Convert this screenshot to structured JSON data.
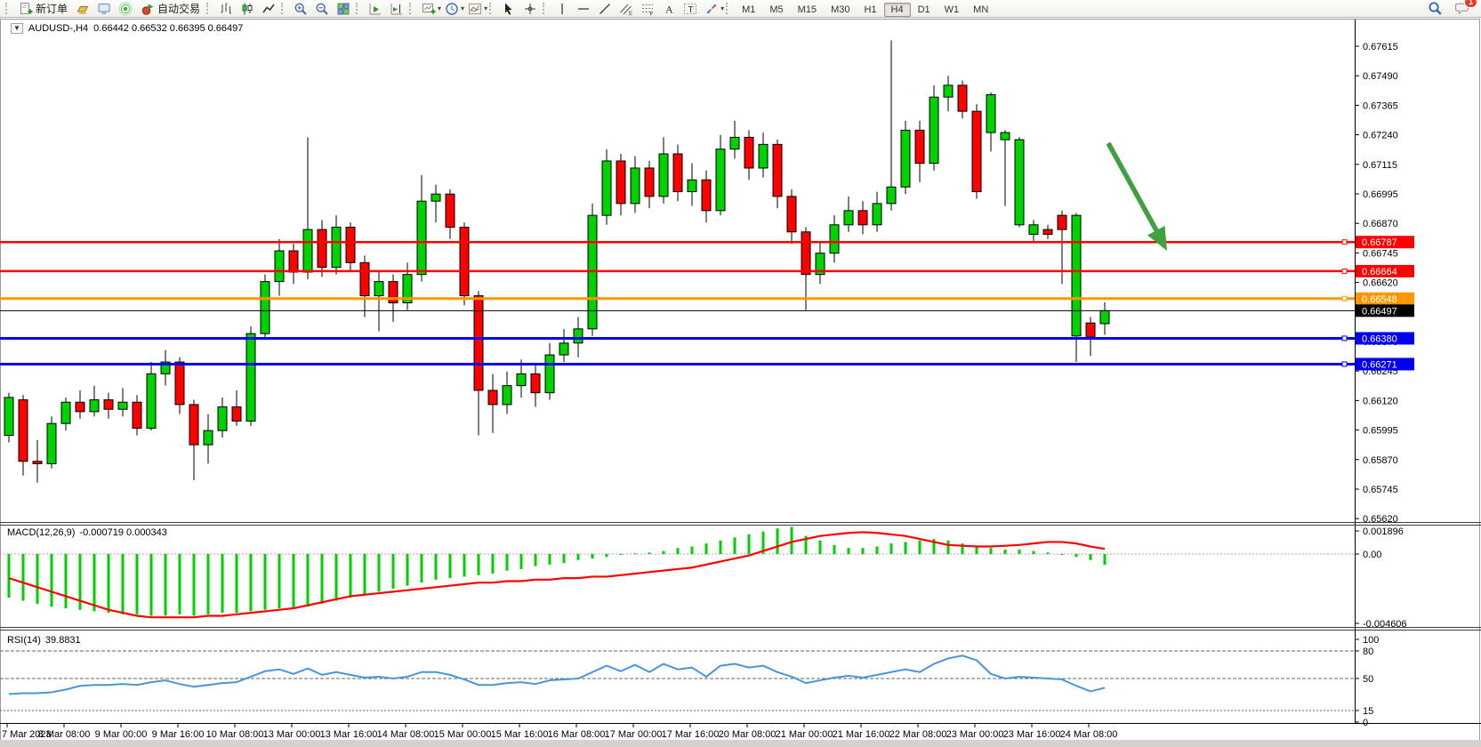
{
  "toolbar": {
    "new_order_label": "新订单",
    "autotrading_label": "自动交易",
    "timeframes": [
      "M1",
      "M5",
      "M15",
      "M30",
      "H1",
      "H4",
      "D1",
      "W1",
      "MN"
    ],
    "active_timeframe": "H4",
    "notification_badge": "1",
    "icon_names": [
      "new-order-icon",
      "market-watch-icon",
      "navigator-icon",
      "terminal-icon",
      "autotrading-icon",
      "bar-chart-icon",
      "candlestick-chart-icon",
      "line-chart-icon",
      "zoom-in-icon",
      "zoom-out-icon",
      "tile-windows-icon",
      "chart-shift-icon",
      "auto-scroll-icon",
      "new-chart-icon",
      "periods-icon",
      "templates-icon",
      "cursor-icon",
      "crosshair-icon",
      "vertical-line-icon",
      "horizontal-line-icon",
      "trendline-icon",
      "equidistant-channel-icon",
      "fibonacci-icon",
      "text-icon",
      "text-label-icon",
      "arrows-icon",
      "search-icon",
      "chat-icon"
    ]
  },
  "chart": {
    "symbol_title": "AUDUSD-,H4",
    "ohlc_text": "0.66442 0.66532 0.66395 0.66497"
  },
  "price_axis": {
    "labels": [
      "0.67615",
      "0.67490",
      "0.67365",
      "0.67240",
      "0.67115",
      "0.66995",
      "0.66870",
      "0.66745",
      "0.66620",
      "0.66495",
      "0.66370",
      "0.66245",
      "0.66120",
      "0.65995",
      "0.65870",
      "0.65745",
      "0.65620"
    ]
  },
  "hlines": [
    {
      "label": "0.66787",
      "value": 0.66787,
      "color": "#ff0000",
      "thickness": 2.5
    },
    {
      "label": "0.66664",
      "value": 0.66664,
      "color": "#ff0000",
      "thickness": 2.5
    },
    {
      "label": "0.66548",
      "value": 0.66548,
      "color": "#ff9800",
      "thickness": 3
    },
    {
      "label": "0.66497",
      "value": 0.66497,
      "color": "#000000",
      "thickness": 1
    },
    {
      "label": "0.66380",
      "value": 0.6638,
      "color": "#0000ee",
      "thickness": 3
    },
    {
      "label": "0.66271",
      "value": 0.66271,
      "color": "#0000ee",
      "thickness": 3
    }
  ],
  "macd": {
    "label": "MACD(12,26,9)",
    "values_text": "-0.000719 0.000343",
    "axis_labels": [
      "0.001896",
      "0.00",
      "-0.004606"
    ],
    "histogram_color": "#00cf00",
    "signal_color": "#ff0000"
  },
  "rsi": {
    "label": "RSI(14)",
    "value_text": "39.8831",
    "axis_labels": [
      "100",
      "80",
      "50",
      "15",
      "0"
    ],
    "line_color": "#4a96d9"
  },
  "time_axis": {
    "labels": [
      "7 Mar 2023",
      "8 Mar 08:00",
      "9 Mar 00:00",
      "9 Mar 16:00",
      "10 Mar 08:00",
      "13 Mar 00:00",
      "13 Mar 16:00",
      "14 Mar 08:00",
      "15 Mar 00:00",
      "15 Mar 16:00",
      "16 Mar 08:00",
      "17 Mar 00:00",
      "17 Mar 16:00",
      "20 Mar 08:00",
      "21 Mar 00:00",
      "21 Mar 16:00",
      "22 Mar 08:00",
      "23 Mar 00:00",
      "23 Mar 16:00",
      "24 Mar 08:00"
    ]
  },
  "annotation_arrow": {
    "color": "#3ea03e"
  },
  "chart_data": {
    "type": "candlestick",
    "symbol": "AUDUSD",
    "timeframe": "H4",
    "current_bar": {
      "open": 0.66442,
      "high": 0.66532,
      "low": 0.66395,
      "close": 0.66497
    },
    "price_range": [
      0.6562,
      0.67615
    ],
    "bull_color": "#00d200",
    "bear_color": "#ff0000",
    "candles": [
      [
        0.6597,
        0.6615,
        0.6594,
        0.6613
      ],
      [
        0.6612,
        0.6614,
        0.658,
        0.6586
      ],
      [
        0.6586,
        0.6595,
        0.6577,
        0.6585
      ],
      [
        0.6585,
        0.6605,
        0.6583,
        0.6602
      ],
      [
        0.6602,
        0.6613,
        0.6599,
        0.6611
      ],
      [
        0.6611,
        0.6616,
        0.6604,
        0.6607
      ],
      [
        0.6607,
        0.6618,
        0.6605,
        0.6612
      ],
      [
        0.6612,
        0.6615,
        0.6604,
        0.6608
      ],
      [
        0.6608,
        0.6617,
        0.6605,
        0.6611
      ],
      [
        0.6611,
        0.6614,
        0.6597,
        0.66
      ],
      [
        0.66,
        0.6628,
        0.6599,
        0.6623
      ],
      [
        0.6623,
        0.6633,
        0.6618,
        0.6628
      ],
      [
        0.6628,
        0.663,
        0.6606,
        0.661
      ],
      [
        0.661,
        0.6612,
        0.6578,
        0.6593
      ],
      [
        0.6593,
        0.6606,
        0.6585,
        0.6599
      ],
      [
        0.6599,
        0.6613,
        0.6596,
        0.6609
      ],
      [
        0.6609,
        0.6616,
        0.6601,
        0.6603
      ],
      [
        0.6603,
        0.6643,
        0.6601,
        0.664
      ],
      [
        0.664,
        0.6665,
        0.6638,
        0.6662
      ],
      [
        0.6662,
        0.668,
        0.6656,
        0.6675
      ],
      [
        0.6675,
        0.6678,
        0.6661,
        0.6666
      ],
      [
        0.6666,
        0.6723,
        0.6663,
        0.6684
      ],
      [
        0.6684,
        0.6688,
        0.6664,
        0.6668
      ],
      [
        0.6668,
        0.669,
        0.6665,
        0.6685
      ],
      [
        0.6685,
        0.6687,
        0.6666,
        0.667
      ],
      [
        0.667,
        0.6673,
        0.6647,
        0.6656
      ],
      [
        0.6656,
        0.6666,
        0.6641,
        0.6662
      ],
      [
        0.6662,
        0.6665,
        0.6645,
        0.6653
      ],
      [
        0.6653,
        0.667,
        0.665,
        0.6665
      ],
      [
        0.6665,
        0.6707,
        0.6662,
        0.6696
      ],
      [
        0.6696,
        0.6703,
        0.6687,
        0.6699
      ],
      [
        0.6699,
        0.6701,
        0.668,
        0.6685
      ],
      [
        0.6685,
        0.6687,
        0.6652,
        0.6656
      ],
      [
        0.6656,
        0.6658,
        0.6597,
        0.6616
      ],
      [
        0.6616,
        0.6623,
        0.6598,
        0.661
      ],
      [
        0.661,
        0.6624,
        0.6606,
        0.6618
      ],
      [
        0.6618,
        0.6629,
        0.6613,
        0.6623
      ],
      [
        0.6623,
        0.6627,
        0.6609,
        0.6615
      ],
      [
        0.6615,
        0.6636,
        0.6612,
        0.6631
      ],
      [
        0.6631,
        0.6642,
        0.6628,
        0.6636
      ],
      [
        0.6636,
        0.6647,
        0.663,
        0.6642
      ],
      [
        0.6642,
        0.6695,
        0.6639,
        0.669
      ],
      [
        0.669,
        0.6718,
        0.6686,
        0.6713
      ],
      [
        0.6713,
        0.6716,
        0.669,
        0.6695
      ],
      [
        0.6695,
        0.6715,
        0.6691,
        0.671
      ],
      [
        0.671,
        0.6713,
        0.6693,
        0.6698
      ],
      [
        0.6698,
        0.6723,
        0.6695,
        0.6716
      ],
      [
        0.6716,
        0.672,
        0.6696,
        0.67
      ],
      [
        0.67,
        0.6712,
        0.6694,
        0.6705
      ],
      [
        0.6705,
        0.6709,
        0.6687,
        0.6692
      ],
      [
        0.6692,
        0.6724,
        0.669,
        0.6718
      ],
      [
        0.6718,
        0.673,
        0.6714,
        0.6723
      ],
      [
        0.6723,
        0.6726,
        0.6705,
        0.671
      ],
      [
        0.671,
        0.6725,
        0.6706,
        0.672
      ],
      [
        0.672,
        0.6722,
        0.6693,
        0.6698
      ],
      [
        0.6698,
        0.6701,
        0.6678,
        0.6683
      ],
      [
        0.6683,
        0.6685,
        0.665,
        0.6665
      ],
      [
        0.6665,
        0.6679,
        0.6661,
        0.6674
      ],
      [
        0.6674,
        0.669,
        0.667,
        0.6686
      ],
      [
        0.6686,
        0.6698,
        0.6683,
        0.6692
      ],
      [
        0.6692,
        0.6696,
        0.6682,
        0.6686
      ],
      [
        0.6686,
        0.67,
        0.6683,
        0.6695
      ],
      [
        0.6695,
        0.6764,
        0.6692,
        0.6702
      ],
      [
        0.6702,
        0.673,
        0.6699,
        0.6726
      ],
      [
        0.6726,
        0.673,
        0.6704,
        0.6712
      ],
      [
        0.6712,
        0.6745,
        0.6709,
        0.674
      ],
      [
        0.674,
        0.6749,
        0.6734,
        0.6745
      ],
      [
        0.6745,
        0.6747,
        0.6731,
        0.6734
      ],
      [
        0.6734,
        0.6737,
        0.6697,
        0.67
      ],
      [
        0.6725,
        0.6742,
        0.6717,
        0.6741
      ],
      [
        0.6722,
        0.6726,
        0.6694,
        0.6725
      ],
      [
        0.6686,
        0.6723,
        0.6685,
        0.6722
      ],
      [
        0.6682,
        0.6688,
        0.6679,
        0.6686
      ],
      [
        0.6684,
        0.6686,
        0.668,
        0.6682
      ],
      [
        0.669,
        0.6692,
        0.6661,
        0.6684
      ],
      [
        0.6639,
        0.6691,
        0.6628,
        0.669
      ],
      [
        0.66445,
        0.6647,
        0.66305,
        0.66385
      ],
      [
        0.66442,
        0.66532,
        0.66395,
        0.66497
      ]
    ],
    "macd_histogram": [
      -0.0029,
      -0.0031,
      -0.0033,
      -0.0035,
      -0.0036,
      -0.0037,
      -0.0038,
      -0.0039,
      -0.004,
      -0.004,
      -0.0041,
      -0.0041,
      -0.004,
      -0.0041,
      -0.004,
      -0.0039,
      -0.0039,
      -0.0038,
      -0.0037,
      -0.0036,
      -0.0036,
      -0.0035,
      -0.0033,
      -0.0031,
      -0.0029,
      -0.0027,
      -0.0025,
      -0.0023,
      -0.0021,
      -0.0019,
      -0.0017,
      -0.0016,
      -0.0015,
      -0.0014,
      -0.0013,
      -0.0011,
      -0.001,
      -0.0008,
      -0.0007,
      -0.0006,
      -0.0004,
      -0.0003,
      -0.0002,
      -5e-05,
      5e-05,
      0.0001,
      0.0002,
      0.0004,
      0.0005,
      0.0007,
      0.0009,
      0.0011,
      0.0013,
      0.0015,
      0.0017,
      0.0018,
      0.0012,
      0.0009,
      0.0006,
      0.0004,
      0.0004,
      0.0005,
      0.0007,
      0.0008,
      0.0009,
      0.001,
      0.0009,
      0.0007,
      0.0005,
      0.0004,
      0.0003,
      0.0003,
      0.0002,
      0.0001,
      0.0,
      -0.0002,
      -0.0004,
      -0.000719
    ],
    "macd_signal": [
      -0.0016,
      -0.0019,
      -0.0022,
      -0.0025,
      -0.0028,
      -0.0031,
      -0.0034,
      -0.0037,
      -0.0039,
      -0.0041,
      -0.0042,
      -0.0042,
      -0.0042,
      -0.0042,
      -0.0041,
      -0.0041,
      -0.004,
      -0.0039,
      -0.0038,
      -0.0037,
      -0.0036,
      -0.0034,
      -0.0032,
      -0.003,
      -0.0028,
      -0.0027,
      -0.0026,
      -0.0025,
      -0.0024,
      -0.0023,
      -0.0022,
      -0.0021,
      -0.002,
      -0.0019,
      -0.0019,
      -0.0018,
      -0.0018,
      -0.0017,
      -0.0017,
      -0.0016,
      -0.0016,
      -0.0015,
      -0.0015,
      -0.0014,
      -0.0013,
      -0.0012,
      -0.0011,
      -0.001,
      -0.0009,
      -0.0007,
      -0.0005,
      -0.0003,
      -0.0001,
      0.0002,
      0.0005,
      0.0008,
      0.001,
      0.0012,
      0.0013,
      0.0014,
      0.00145,
      0.0014,
      0.0013,
      0.0012,
      0.001,
      0.0008,
      0.0006,
      0.00055,
      0.0005,
      0.0005,
      0.00055,
      0.0006,
      0.0007,
      0.0008,
      0.0008,
      0.0007,
      0.0005,
      0.000343
    ],
    "rsi": [
      33,
      34,
      34,
      35,
      38,
      42,
      43,
      43,
      44,
      43,
      46,
      48,
      44,
      41,
      43,
      45,
      46,
      52,
      58,
      60,
      55,
      61,
      54,
      57,
      54,
      51,
      52,
      50,
      52,
      57,
      57,
      54,
      49,
      43,
      43,
      45,
      46,
      44,
      48,
      49,
      50,
      57,
      64,
      58,
      65,
      57,
      66,
      60,
      62,
      52,
      64,
      66,
      62,
      64,
      57,
      52,
      45,
      48,
      51,
      53,
      51,
      54,
      57,
      60,
      57,
      66,
      72,
      75,
      70,
      55,
      50,
      52,
      51,
      50,
      49,
      42,
      36,
      39.8831
    ]
  }
}
